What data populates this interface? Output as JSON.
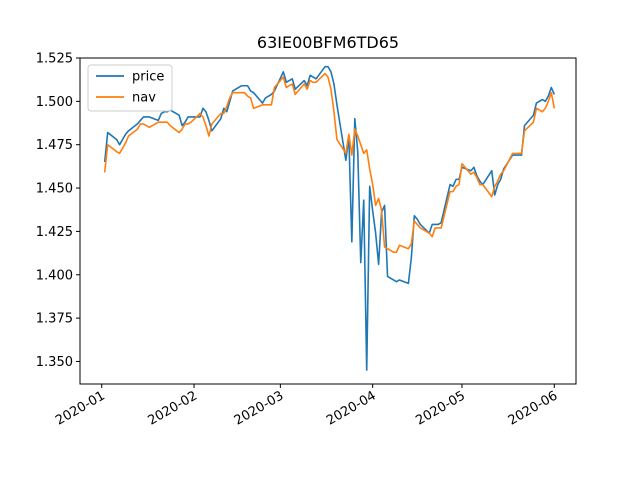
{
  "chart_data": {
    "type": "line",
    "title": "63IE00BFM6TD65",
    "xlabel": "",
    "ylabel": "",
    "x_range": [
      "2020-01-01",
      "2020-06-01"
    ],
    "ylim": [
      1.337,
      1.525
    ],
    "x_tick_labels": [
      "2020-01",
      "2020-02",
      "2020-03",
      "2020-04",
      "2020-05",
      "2020-06"
    ],
    "y_tick_labels": [
      "1.350",
      "1.375",
      "1.400",
      "1.425",
      "1.450",
      "1.475",
      "1.500",
      "1.525"
    ],
    "grid": false,
    "legend_position": "top-left",
    "series": [
      {
        "name": "price",
        "color": "#1f77b4",
        "points": [
          [
            "2020-01-02",
            1.465
          ],
          [
            "2020-01-03",
            1.482
          ],
          [
            "2020-01-06",
            1.478
          ],
          [
            "2020-01-07",
            1.475
          ],
          [
            "2020-01-08",
            1.478
          ],
          [
            "2020-01-09",
            1.481
          ],
          [
            "2020-01-10",
            1.483
          ],
          [
            "2020-01-13",
            1.487
          ],
          [
            "2020-01-14",
            1.489
          ],
          [
            "2020-01-15",
            1.491
          ],
          [
            "2020-01-16",
            1.491
          ],
          [
            "2020-01-17",
            1.491
          ],
          [
            "2020-01-20",
            1.489
          ],
          [
            "2020-01-21",
            1.493
          ],
          [
            "2020-01-22",
            1.494
          ],
          [
            "2020-01-23",
            1.494
          ],
          [
            "2020-01-24",
            1.495
          ],
          [
            "2020-01-27",
            1.492
          ],
          [
            "2020-01-28",
            1.486
          ],
          [
            "2020-01-29",
            1.488
          ],
          [
            "2020-01-30",
            1.491
          ],
          [
            "2020-01-31",
            1.491
          ],
          [
            "2020-02-03",
            1.491
          ],
          [
            "2020-02-04",
            1.496
          ],
          [
            "2020-02-05",
            1.494
          ],
          [
            "2020-02-06",
            1.489
          ],
          [
            "2020-02-07",
            1.483
          ],
          [
            "2020-02-10",
            1.49
          ],
          [
            "2020-02-11",
            1.496
          ],
          [
            "2020-02-12",
            1.494
          ],
          [
            "2020-02-13",
            1.5
          ],
          [
            "2020-02-14",
            1.506
          ],
          [
            "2020-02-17",
            1.509
          ],
          [
            "2020-02-18",
            1.509
          ],
          [
            "2020-02-19",
            1.509
          ],
          [
            "2020-02-20",
            1.506
          ],
          [
            "2020-02-21",
            1.505
          ],
          [
            "2020-02-24",
            1.499
          ],
          [
            "2020-02-25",
            1.502
          ],
          [
            "2020-02-26",
            1.503
          ],
          [
            "2020-02-27",
            1.504
          ],
          [
            "2020-02-28",
            1.506
          ],
          [
            "2020-03-02",
            1.517
          ],
          [
            "2020-03-03",
            1.511
          ],
          [
            "2020-03-04",
            1.512
          ],
          [
            "2020-03-05",
            1.513
          ],
          [
            "2020-03-06",
            1.507
          ],
          [
            "2020-03-09",
            1.512
          ],
          [
            "2020-03-10",
            1.509
          ],
          [
            "2020-03-11",
            1.515
          ],
          [
            "2020-03-12",
            1.514
          ],
          [
            "2020-03-13",
            1.513
          ],
          [
            "2020-03-16",
            1.52
          ],
          [
            "2020-03-17",
            1.52
          ],
          [
            "2020-03-18",
            1.517
          ],
          [
            "2020-03-19",
            1.51
          ],
          [
            "2020-03-20",
            1.498
          ],
          [
            "2020-03-23",
            1.466
          ],
          [
            "2020-03-24",
            1.48
          ],
          [
            "2020-03-25",
            1.419
          ],
          [
            "2020-03-26",
            1.49
          ],
          [
            "2020-03-27",
            1.471
          ],
          [
            "2020-03-28",
            1.407
          ],
          [
            "2020-03-29",
            1.443
          ],
          [
            "2020-03-30",
            1.345
          ],
          [
            "2020-03-31",
            1.451
          ],
          [
            "2020-04-01",
            1.437
          ],
          [
            "2020-04-02",
            1.424
          ],
          [
            "2020-04-03",
            1.406
          ],
          [
            "2020-04-04",
            1.436
          ],
          [
            "2020-04-05",
            1.44
          ],
          [
            "2020-04-06",
            1.399
          ],
          [
            "2020-04-08",
            1.397
          ],
          [
            "2020-04-09",
            1.396
          ],
          [
            "2020-04-10",
            1.397
          ],
          [
            "2020-04-13",
            1.395
          ],
          [
            "2020-04-14",
            1.41
          ],
          [
            "2020-04-15",
            1.434
          ],
          [
            "2020-04-16",
            1.432
          ],
          [
            "2020-04-17",
            1.429
          ],
          [
            "2020-04-20",
            1.424
          ],
          [
            "2020-04-21",
            1.429
          ],
          [
            "2020-04-22",
            1.429
          ],
          [
            "2020-04-23",
            1.429
          ],
          [
            "2020-04-24",
            1.43
          ],
          [
            "2020-04-27",
            1.452
          ],
          [
            "2020-04-28",
            1.451
          ],
          [
            "2020-04-29",
            1.455
          ],
          [
            "2020-04-30",
            1.455
          ],
          [
            "2020-05-01",
            1.462
          ],
          [
            "2020-05-04",
            1.46
          ],
          [
            "2020-05-05",
            1.462
          ],
          [
            "2020-05-06",
            1.457
          ],
          [
            "2020-05-07",
            1.454
          ],
          [
            "2020-05-08",
            1.452
          ],
          [
            "2020-05-11",
            1.46
          ],
          [
            "2020-05-12",
            1.446
          ],
          [
            "2020-05-13",
            1.452
          ],
          [
            "2020-05-14",
            1.455
          ],
          [
            "2020-05-15",
            1.461
          ],
          [
            "2020-05-18",
            1.469
          ],
          [
            "2020-05-19",
            1.469
          ],
          [
            "2020-05-20",
            1.469
          ],
          [
            "2020-05-21",
            1.469
          ],
          [
            "2020-05-22",
            1.486
          ],
          [
            "2020-05-25",
            1.492
          ],
          [
            "2020-05-26",
            1.499
          ],
          [
            "2020-05-27",
            1.5
          ],
          [
            "2020-05-28",
            1.501
          ],
          [
            "2020-05-29",
            1.5
          ],
          [
            "2020-06-01",
            1.504
          ],
          [
            "2020-05-30",
            1.503
          ],
          [
            "2020-05-31",
            1.508
          ]
        ]
      },
      {
        "name": "nav",
        "color": "#ff7f0e",
        "points": [
          [
            "2020-01-02",
            1.459
          ],
          [
            "2020-01-03",
            1.475
          ],
          [
            "2020-01-06",
            1.471
          ],
          [
            "2020-01-07",
            1.47
          ],
          [
            "2020-01-08",
            1.473
          ],
          [
            "2020-01-09",
            1.476
          ],
          [
            "2020-01-10",
            1.48
          ],
          [
            "2020-01-13",
            1.484
          ],
          [
            "2020-01-14",
            1.487
          ],
          [
            "2020-01-15",
            1.487
          ],
          [
            "2020-01-16",
            1.486
          ],
          [
            "2020-01-17",
            1.485
          ],
          [
            "2020-01-20",
            1.488
          ],
          [
            "2020-01-21",
            1.488
          ],
          [
            "2020-01-22",
            1.488
          ],
          [
            "2020-01-23",
            1.488
          ],
          [
            "2020-01-24",
            1.486
          ],
          [
            "2020-01-27",
            1.482
          ],
          [
            "2020-01-28",
            1.484
          ],
          [
            "2020-01-29",
            1.487
          ],
          [
            "2020-01-30",
            1.487
          ],
          [
            "2020-01-31",
            1.488
          ],
          [
            "2020-02-03",
            1.493
          ],
          [
            "2020-02-04",
            1.491
          ],
          [
            "2020-02-05",
            1.486
          ],
          [
            "2020-02-06",
            1.48
          ],
          [
            "2020-02-07",
            1.487
          ],
          [
            "2020-02-10",
            1.493
          ],
          [
            "2020-02-11",
            1.493
          ],
          [
            "2020-02-12",
            1.497
          ],
          [
            "2020-02-13",
            1.502
          ],
          [
            "2020-02-14",
            1.505
          ],
          [
            "2020-02-17",
            1.505
          ],
          [
            "2020-02-18",
            1.505
          ],
          [
            "2020-02-19",
            1.503
          ],
          [
            "2020-02-20",
            1.502
          ],
          [
            "2020-02-21",
            1.496
          ],
          [
            "2020-02-24",
            1.498
          ],
          [
            "2020-02-25",
            1.498
          ],
          [
            "2020-02-26",
            1.498
          ],
          [
            "2020-02-27",
            1.498
          ],
          [
            "2020-02-28",
            1.508
          ],
          [
            "2020-03-02",
            1.514
          ],
          [
            "2020-03-03",
            1.508
          ],
          [
            "2020-03-04",
            1.509
          ],
          [
            "2020-03-05",
            1.51
          ],
          [
            "2020-03-06",
            1.504
          ],
          [
            "2020-03-09",
            1.51
          ],
          [
            "2020-03-10",
            1.507
          ],
          [
            "2020-03-11",
            1.512
          ],
          [
            "2020-03-12",
            1.511
          ],
          [
            "2020-03-13",
            1.511
          ],
          [
            "2020-03-16",
            1.516
          ],
          [
            "2020-03-17",
            1.514
          ],
          [
            "2020-03-18",
            1.507
          ],
          [
            "2020-03-19",
            1.494
          ],
          [
            "2020-03-20",
            1.478
          ],
          [
            "2020-03-23",
            1.47
          ],
          [
            "2020-03-24",
            1.481
          ],
          [
            "2020-03-25",
            1.469
          ],
          [
            "2020-03-26",
            1.484
          ],
          [
            "2020-03-27",
            1.48
          ],
          [
            "2020-03-28",
            1.475
          ],
          [
            "2020-03-29",
            1.47
          ],
          [
            "2020-03-30",
            1.472
          ],
          [
            "2020-03-31",
            1.461
          ],
          [
            "2020-04-01",
            1.452
          ],
          [
            "2020-04-02",
            1.44
          ],
          [
            "2020-04-03",
            1.444
          ],
          [
            "2020-04-04",
            1.437
          ],
          [
            "2020-04-05",
            1.416
          ],
          [
            "2020-04-06",
            1.415
          ],
          [
            "2020-04-08",
            1.413
          ],
          [
            "2020-04-09",
            1.413
          ],
          [
            "2020-04-10",
            1.417
          ],
          [
            "2020-04-13",
            1.415
          ],
          [
            "2020-04-14",
            1.418
          ],
          [
            "2020-04-15",
            1.431
          ],
          [
            "2020-04-16",
            1.429
          ],
          [
            "2020-04-17",
            1.427
          ],
          [
            "2020-04-20",
            1.424
          ],
          [
            "2020-04-21",
            1.422
          ],
          [
            "2020-04-22",
            1.427
          ],
          [
            "2020-04-23",
            1.427
          ],
          [
            "2020-04-24",
            1.427
          ],
          [
            "2020-04-27",
            1.448
          ],
          [
            "2020-04-28",
            1.448
          ],
          [
            "2020-04-29",
            1.451
          ],
          [
            "2020-04-30",
            1.452
          ],
          [
            "2020-05-01",
            1.464
          ],
          [
            "2020-05-04",
            1.458
          ],
          [
            "2020-05-05",
            1.459
          ],
          [
            "2020-05-06",
            1.456
          ],
          [
            "2020-05-07",
            1.452
          ],
          [
            "2020-05-08",
            1.452
          ],
          [
            "2020-05-11",
            1.445
          ],
          [
            "2020-05-12",
            1.451
          ],
          [
            "2020-05-13",
            1.454
          ],
          [
            "2020-05-14",
            1.458
          ],
          [
            "2020-05-15",
            1.46
          ],
          [
            "2020-05-18",
            1.47
          ],
          [
            "2020-05-19",
            1.47
          ],
          [
            "2020-05-20",
            1.47
          ],
          [
            "2020-05-21",
            1.47
          ],
          [
            "2020-05-22",
            1.483
          ],
          [
            "2020-05-25",
            1.488
          ],
          [
            "2020-05-26",
            1.496
          ],
          [
            "2020-05-27",
            1.495
          ],
          [
            "2020-05-28",
            1.494
          ],
          [
            "2020-05-29",
            1.496
          ],
          [
            "2020-06-01",
            1.496
          ],
          [
            "2020-05-30",
            1.5
          ],
          [
            "2020-05-31",
            1.505
          ]
        ]
      }
    ]
  }
}
